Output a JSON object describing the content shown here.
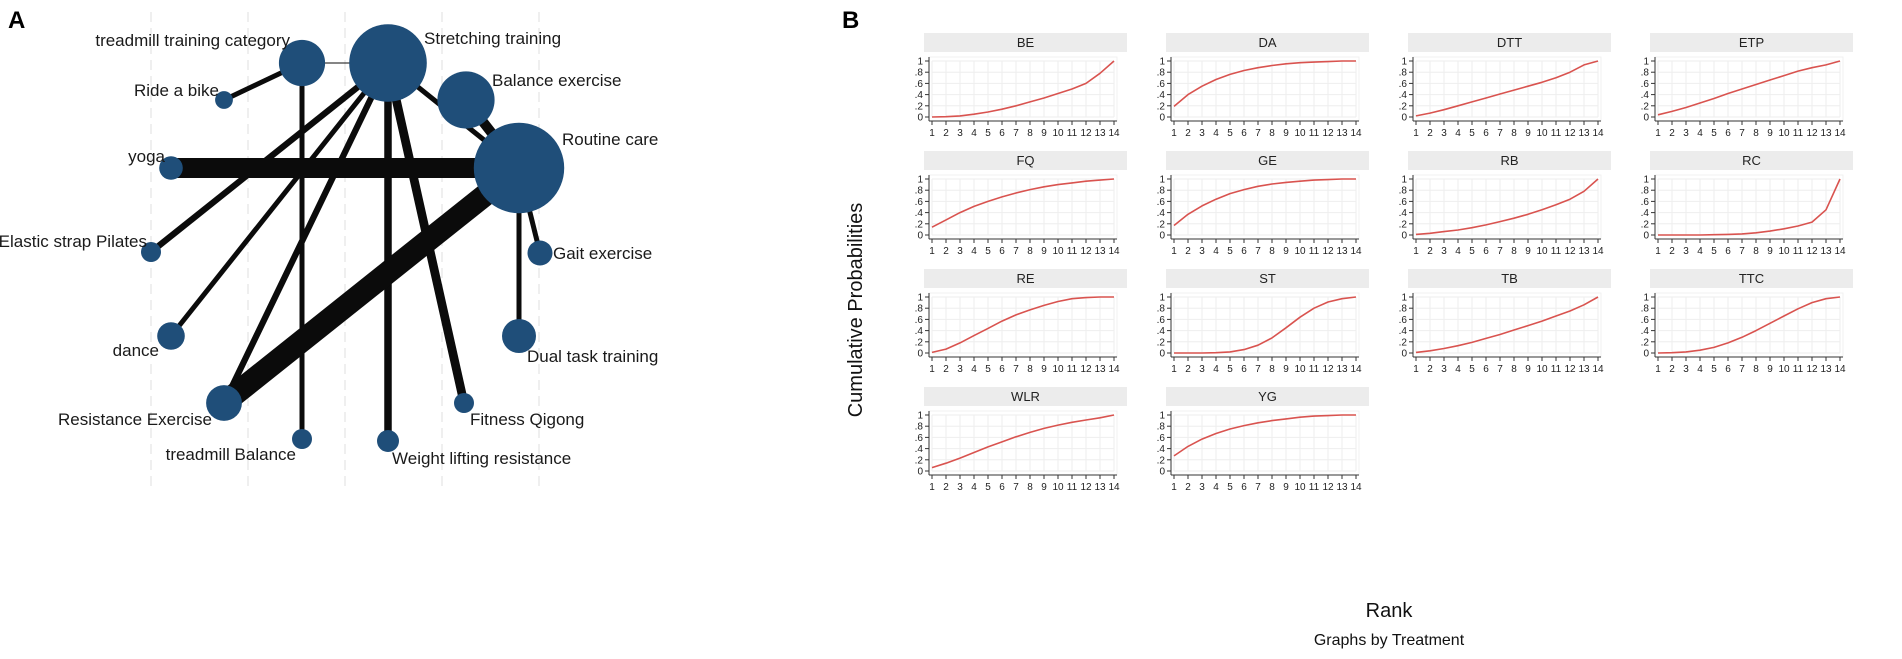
{
  "panel_a": {
    "letter": "A",
    "chart_type": "network",
    "nodes": [
      {
        "id": "STR",
        "label": "Stretching training",
        "size": 10
      },
      {
        "id": "TTC",
        "label": "treadmill training category",
        "size": 3
      },
      {
        "id": "RB",
        "label": "Ride a bike",
        "size": 0.2
      },
      {
        "id": "BE",
        "label": "Balance exercise",
        "size": 5
      },
      {
        "id": "RC",
        "label": "Routine care",
        "size": 14
      },
      {
        "id": "YG",
        "label": "yoga",
        "size": 0.5
      },
      {
        "id": "ESP",
        "label": "Elastic strap Pilates",
        "size": 0.3
      },
      {
        "id": "GE",
        "label": "Gait exercise",
        "size": 0.6
      },
      {
        "id": "DA",
        "label": "dance",
        "size": 0.8
      },
      {
        "id": "DTT",
        "label": "Dual task training",
        "size": 1.4
      },
      {
        "id": "RE",
        "label": "Resistance Exercise",
        "size": 1.6
      },
      {
        "id": "FQ",
        "label": "Fitness Qigong",
        "size": 0.3
      },
      {
        "id": "TB",
        "label": "treadmill Balance",
        "size": 0.3
      },
      {
        "id": "WLR",
        "label": "Weight lifting resistance",
        "size": 0.4
      }
    ],
    "edges": [
      {
        "from": "TTC",
        "to": "STR",
        "weight": 0.3
      },
      {
        "from": "TTC",
        "to": "RB",
        "weight": 2
      },
      {
        "from": "TTC",
        "to": "TB",
        "weight": 2
      },
      {
        "from": "STR",
        "to": "RC",
        "weight": 2
      },
      {
        "from": "STR",
        "to": "ESP",
        "weight": 2.5
      },
      {
        "from": "STR",
        "to": "DA",
        "weight": 2
      },
      {
        "from": "STR",
        "to": "RE",
        "weight": 2.5
      },
      {
        "from": "STR",
        "to": "WLR",
        "weight": 3
      },
      {
        "from": "STR",
        "to": "FQ",
        "weight": 3.5
      },
      {
        "from": "BE",
        "to": "RC",
        "weight": 4
      },
      {
        "from": "YG",
        "to": "RC",
        "weight": 8
      },
      {
        "from": "RE",
        "to": "RC",
        "weight": 9
      },
      {
        "from": "RC",
        "to": "GE",
        "weight": 2
      },
      {
        "from": "RC",
        "to": "DTT",
        "weight": 2
      }
    ]
  },
  "panel_b": {
    "letter": "B",
    "chart_data": {
      "type": "line",
      "title": "",
      "xlabel": "Rank",
      "ylabel": "Cumulative Probabilities",
      "note": "Graphs by Treatment",
      "x": [
        1,
        2,
        3,
        4,
        5,
        6,
        7,
        8,
        9,
        10,
        11,
        12,
        13,
        14
      ],
      "x_ticks": [
        "1",
        "2",
        "3",
        "4",
        "5",
        "6",
        "7",
        "8",
        "9",
        "10",
        "11",
        "12",
        "13",
        "14"
      ],
      "ylim": [
        0,
        1
      ],
      "y_ticks": [
        "0",
        ".2",
        ".4",
        ".6",
        ".8",
        "1"
      ],
      "line_color": "#d9534f",
      "grid": true,
      "series": [
        {
          "name": "BE",
          "values": [
            0.0,
            0.005,
            0.02,
            0.05,
            0.09,
            0.14,
            0.2,
            0.27,
            0.34,
            0.42,
            0.5,
            0.6,
            0.78,
            1.0
          ]
        },
        {
          "name": "DA",
          "values": [
            0.19,
            0.4,
            0.55,
            0.67,
            0.76,
            0.83,
            0.88,
            0.92,
            0.95,
            0.97,
            0.98,
            0.99,
            1.0,
            1.0
          ]
        },
        {
          "name": "DTT",
          "values": [
            0.02,
            0.07,
            0.13,
            0.2,
            0.27,
            0.34,
            0.41,
            0.48,
            0.55,
            0.62,
            0.7,
            0.8,
            0.93,
            1.0
          ]
        },
        {
          "name": "ETP",
          "values": [
            0.04,
            0.1,
            0.17,
            0.25,
            0.33,
            0.42,
            0.5,
            0.58,
            0.66,
            0.74,
            0.82,
            0.88,
            0.93,
            1.0
          ]
        },
        {
          "name": "FQ",
          "values": [
            0.14,
            0.27,
            0.4,
            0.51,
            0.6,
            0.68,
            0.75,
            0.81,
            0.86,
            0.9,
            0.93,
            0.96,
            0.98,
            1.0
          ]
        },
        {
          "name": "GE",
          "values": [
            0.17,
            0.37,
            0.52,
            0.64,
            0.74,
            0.81,
            0.87,
            0.91,
            0.94,
            0.96,
            0.98,
            0.99,
            1.0,
            1.0
          ]
        },
        {
          "name": "RB",
          "values": [
            0.01,
            0.03,
            0.06,
            0.09,
            0.13,
            0.18,
            0.24,
            0.3,
            0.37,
            0.45,
            0.54,
            0.64,
            0.78,
            1.0
          ]
        },
        {
          "name": "RC",
          "values": [
            0.0,
            0.0,
            0.0,
            0.0,
            0.005,
            0.01,
            0.02,
            0.04,
            0.07,
            0.11,
            0.16,
            0.23,
            0.45,
            1.0
          ]
        },
        {
          "name": "RE",
          "values": [
            0.01,
            0.07,
            0.18,
            0.31,
            0.44,
            0.57,
            0.68,
            0.77,
            0.85,
            0.92,
            0.97,
            0.99,
            1.0,
            1.0
          ]
        },
        {
          "name": "ST",
          "values": [
            0.0,
            0.0,
            0.0,
            0.005,
            0.02,
            0.06,
            0.14,
            0.27,
            0.45,
            0.64,
            0.8,
            0.91,
            0.97,
            1.0
          ]
        },
        {
          "name": "TB",
          "values": [
            0.01,
            0.04,
            0.08,
            0.13,
            0.19,
            0.26,
            0.33,
            0.41,
            0.49,
            0.57,
            0.66,
            0.75,
            0.86,
            1.0
          ]
        },
        {
          "name": "TTC",
          "values": [
            0.0,
            0.005,
            0.02,
            0.05,
            0.1,
            0.18,
            0.28,
            0.4,
            0.53,
            0.66,
            0.79,
            0.9,
            0.97,
            1.0
          ]
        },
        {
          "name": "WLR",
          "values": [
            0.06,
            0.14,
            0.23,
            0.33,
            0.43,
            0.52,
            0.61,
            0.69,
            0.76,
            0.82,
            0.87,
            0.91,
            0.95,
            1.0
          ]
        },
        {
          "name": "YG",
          "values": [
            0.27,
            0.44,
            0.57,
            0.67,
            0.75,
            0.81,
            0.86,
            0.9,
            0.93,
            0.96,
            0.98,
            0.99,
            1.0,
            1.0
          ]
        }
      ]
    }
  }
}
